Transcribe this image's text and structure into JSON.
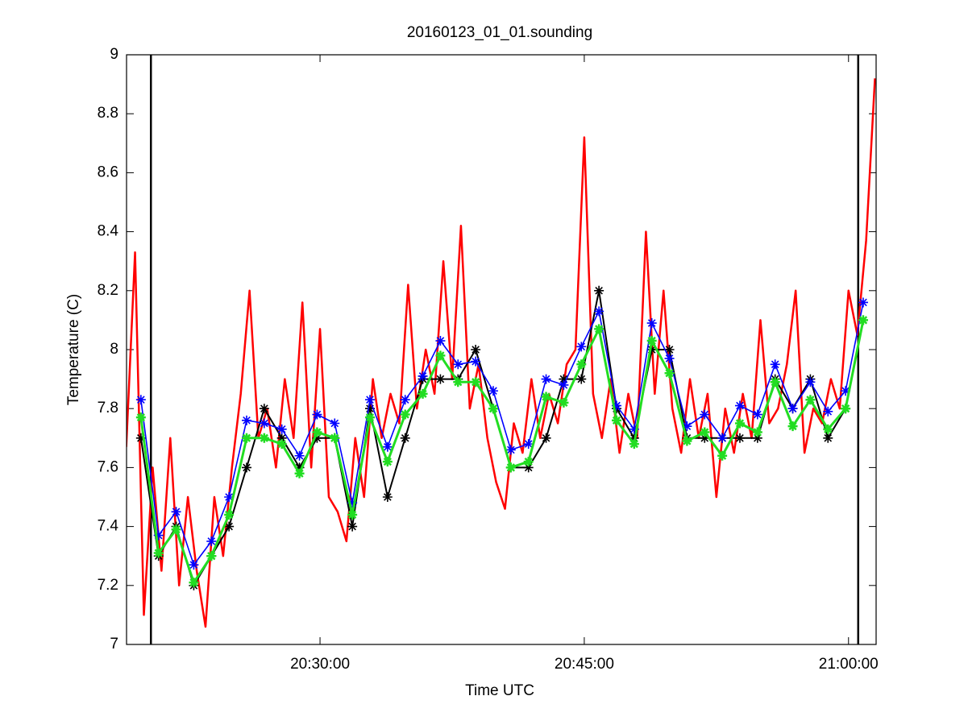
{
  "chart_data": {
    "type": "line",
    "title": "20160123_01_01.sounding",
    "xlabel": "Time UTC",
    "ylabel": "Temperature (C)",
    "xlim": [
      "20:19:01",
      "21:01:34"
    ],
    "xticks": [
      "20:30:00",
      "20:45:00",
      "21:00:00"
    ],
    "ylim": [
      7,
      9
    ],
    "yticks": [
      7,
      7.2,
      7.4,
      7.6,
      7.8,
      8,
      8.2,
      8.4,
      8.6,
      8.8,
      9
    ],
    "vlines": [
      "20:20:24",
      "21:00:33"
    ],
    "vline_color": "#000000",
    "series": [
      {
        "color": "#ff0000",
        "marker": "none",
        "x": [
          "20:19:00",
          "20:19:30",
          "20:20:00",
          "20:20:30",
          "20:21:00",
          "20:21:30",
          "20:22:00",
          "20:22:30",
          "20:23:00",
          "20:23:30",
          "20:24:00",
          "20:24:30",
          "20:25:00",
          "20:25:30",
          "20:26:00",
          "20:26:30",
          "20:27:00",
          "20:27:30",
          "20:28:00",
          "20:28:30",
          "20:29:00",
          "20:29:30",
          "20:30:00",
          "20:30:30",
          "20:31:00",
          "20:31:30",
          "20:32:00",
          "20:32:30",
          "20:33:00",
          "20:33:30",
          "20:34:00",
          "20:34:30",
          "20:35:00",
          "20:35:30",
          "20:36:00",
          "20:36:30",
          "20:37:00",
          "20:37:30",
          "20:38:00",
          "20:38:30",
          "20:39:00",
          "20:39:30",
          "20:40:00",
          "20:40:30",
          "20:41:00",
          "20:41:30",
          "20:42:00",
          "20:42:30",
          "20:43:00",
          "20:43:30",
          "20:44:00",
          "20:44:30",
          "20:45:00",
          "20:45:30",
          "20:46:00",
          "20:46:30",
          "20:47:00",
          "20:47:30",
          "20:48:00",
          "20:48:30",
          "20:49:00",
          "20:49:30",
          "20:50:00",
          "20:50:30",
          "20:51:00",
          "20:51:30",
          "20:52:00",
          "20:52:30",
          "20:53:00",
          "20:53:30",
          "20:54:00",
          "20:54:30",
          "20:55:00",
          "20:55:30",
          "20:56:00",
          "20:56:30",
          "20:57:00",
          "20:57:30",
          "20:58:00",
          "20:58:30",
          "20:59:00",
          "20:59:30",
          "21:00:00",
          "21:00:30",
          "21:01:00",
          "21:01:30"
        ],
        "values": [
          7.67,
          8.33,
          7.1,
          7.6,
          7.25,
          7.7,
          7.2,
          7.5,
          7.25,
          7.06,
          7.5,
          7.3,
          7.6,
          7.85,
          8.2,
          7.7,
          7.8,
          7.6,
          7.9,
          7.7,
          8.16,
          7.6,
          8.07,
          7.5,
          7.45,
          7.35,
          7.7,
          7.5,
          7.9,
          7.7,
          7.85,
          7.75,
          8.22,
          7.8,
          8.0,
          7.85,
          8.3,
          7.9,
          8.42,
          7.8,
          7.95,
          7.7,
          7.55,
          7.46,
          7.75,
          7.65,
          7.9,
          7.7,
          7.85,
          7.75,
          7.95,
          8.0,
          8.72,
          7.85,
          7.7,
          7.9,
          7.65,
          7.85,
          7.7,
          8.4,
          7.85,
          8.2,
          7.8,
          7.65,
          7.9,
          7.7,
          7.85,
          7.5,
          7.8,
          7.65,
          7.85,
          7.7,
          8.1,
          7.75,
          7.8,
          7.95,
          8.2,
          7.65,
          7.8,
          7.75,
          7.9,
          7.8,
          8.2,
          8.05,
          8.37,
          8.92
        ]
      },
      {
        "color": "#000000",
        "marker": "asterisk",
        "x": [
          "20:19:50",
          "20:20:50",
          "20:21:50",
          "20:22:50",
          "20:23:50",
          "20:24:50",
          "20:25:50",
          "20:26:50",
          "20:27:50",
          "20:28:50",
          "20:29:50",
          "20:30:50",
          "20:31:50",
          "20:32:50",
          "20:33:50",
          "20:34:50",
          "20:35:50",
          "20:36:50",
          "20:37:50",
          "20:38:50",
          "20:39:50",
          "20:40:50",
          "20:41:50",
          "20:42:50",
          "20:43:50",
          "20:44:50",
          "20:45:50",
          "20:46:50",
          "20:47:50",
          "20:48:50",
          "20:49:50",
          "20:50:50",
          "20:51:50",
          "20:52:50",
          "20:53:50",
          "20:54:50",
          "20:55:50",
          "20:56:50",
          "20:57:50",
          "20:58:50",
          "20:59:50",
          "21:00:50"
        ],
        "values": [
          7.7,
          7.3,
          7.4,
          7.2,
          7.3,
          7.4,
          7.6,
          7.8,
          7.7,
          7.6,
          7.7,
          7.7,
          7.4,
          7.8,
          7.5,
          7.7,
          7.9,
          7.9,
          7.9,
          8.0,
          7.8,
          7.6,
          7.6,
          7.7,
          7.9,
          7.9,
          8.2,
          7.8,
          7.7,
          8.0,
          8.0,
          7.7,
          7.7,
          7.7,
          7.7,
          7.7,
          7.9,
          7.8,
          7.9,
          7.7,
          7.8,
          8.1
        ]
      },
      {
        "color": "#0000ff",
        "marker": "asterisk",
        "x": [
          "20:19:50",
          "20:20:50",
          "20:21:50",
          "20:22:50",
          "20:23:50",
          "20:24:50",
          "20:25:50",
          "20:26:50",
          "20:27:50",
          "20:28:50",
          "20:29:50",
          "20:30:50",
          "20:31:50",
          "20:32:50",
          "20:33:50",
          "20:34:50",
          "20:35:50",
          "20:36:50",
          "20:37:50",
          "20:38:50",
          "20:39:50",
          "20:40:50",
          "20:41:50",
          "20:42:50",
          "20:43:50",
          "20:44:50",
          "20:45:50",
          "20:46:50",
          "20:47:50",
          "20:48:50",
          "20:49:50",
          "20:50:50",
          "20:51:50",
          "20:52:50",
          "20:53:50",
          "20:54:50",
          "20:55:50",
          "20:56:50",
          "20:57:50",
          "20:58:50",
          "20:59:50",
          "21:00:50"
        ],
        "values": [
          7.83,
          7.37,
          7.45,
          7.27,
          7.35,
          7.5,
          7.76,
          7.75,
          7.73,
          7.64,
          7.78,
          7.75,
          7.48,
          7.83,
          7.67,
          7.83,
          7.91,
          8.03,
          7.95,
          7.96,
          7.86,
          7.66,
          7.68,
          7.9,
          7.88,
          8.01,
          8.13,
          7.81,
          7.73,
          8.09,
          7.97,
          7.74,
          7.78,
          7.7,
          7.81,
          7.78,
          7.95,
          7.8,
          7.89,
          7.79,
          7.86,
          8.16
        ]
      },
      {
        "color": "#22dd22",
        "marker": "asterisk",
        "x": [
          "20:19:50",
          "20:20:50",
          "20:21:50",
          "20:22:50",
          "20:23:50",
          "20:24:50",
          "20:25:50",
          "20:26:50",
          "20:27:50",
          "20:28:50",
          "20:29:50",
          "20:30:50",
          "20:31:50",
          "20:32:50",
          "20:33:50",
          "20:34:50",
          "20:35:50",
          "20:36:50",
          "20:37:50",
          "20:38:50",
          "20:39:50",
          "20:40:50",
          "20:41:50",
          "20:42:50",
          "20:43:50",
          "20:44:50",
          "20:45:50",
          "20:46:50",
          "20:47:50",
          "20:48:50",
          "20:49:50",
          "20:50:50",
          "20:51:50",
          "20:52:50",
          "20:53:50",
          "20:54:50",
          "20:55:50",
          "20:56:50",
          "20:57:50",
          "20:58:50",
          "20:59:50",
          "21:00:50"
        ],
        "values": [
          7.77,
          7.31,
          7.39,
          7.21,
          7.3,
          7.44,
          7.7,
          7.7,
          7.68,
          7.58,
          7.72,
          7.7,
          7.44,
          7.77,
          7.62,
          7.78,
          7.85,
          7.98,
          7.89,
          7.89,
          7.8,
          7.6,
          7.62,
          7.84,
          7.82,
          7.95,
          8.07,
          7.76,
          7.68,
          8.03,
          7.92,
          7.69,
          7.72,
          7.64,
          7.75,
          7.72,
          7.89,
          7.74,
          7.83,
          7.73,
          7.8,
          8.1
        ]
      }
    ]
  }
}
